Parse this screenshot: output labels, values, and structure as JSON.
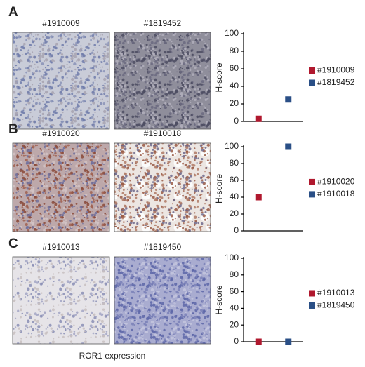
{
  "chart_data": [
    {
      "type": "scatter",
      "panel": "A",
      "image_titles": [
        "#1910009",
        "#1819452"
      ],
      "ylabel": "H-score",
      "categories": [
        null,
        null
      ],
      "series": [
        {
          "name": "#1910009",
          "color": "#b0182e",
          "values": [
            3,
            null
          ]
        },
        {
          "name": "#1819452",
          "color": "#2a4f86",
          "values": [
            null,
            25
          ]
        }
      ],
      "ylim": [
        0,
        100
      ],
      "yticks": [
        0,
        20,
        40,
        60,
        80,
        100
      ],
      "legend": "right"
    },
    {
      "type": "scatter",
      "panel": "B",
      "image_titles": [
        "#1910020",
        "#1910018"
      ],
      "ylabel": "H-score",
      "categories": [
        null,
        null
      ],
      "series": [
        {
          "name": "#1910020",
          "color": "#b0182e",
          "values": [
            40,
            null
          ]
        },
        {
          "name": "#1910018",
          "color": "#2a4f86",
          "values": [
            null,
            100
          ]
        }
      ],
      "ylim": [
        0,
        100
      ],
      "yticks": [
        0,
        20,
        40,
        60,
        80,
        100
      ],
      "legend": "right"
    },
    {
      "type": "scatter",
      "panel": "C",
      "image_titles": [
        "#1910013",
        "#1819450"
      ],
      "ylabel": "H-score",
      "categories": [
        null,
        null
      ],
      "series": [
        {
          "name": "#1910013",
          "color": "#b0182e",
          "values": [
            0,
            null
          ]
        },
        {
          "name": "#1819450",
          "color": "#2a4f86",
          "values": [
            null,
            0
          ]
        }
      ],
      "ylim": [
        0,
        100
      ],
      "yticks": [
        0,
        20,
        40,
        60,
        80,
        100
      ],
      "legend": "right"
    }
  ],
  "figure_caption": "ROR1 expression"
}
